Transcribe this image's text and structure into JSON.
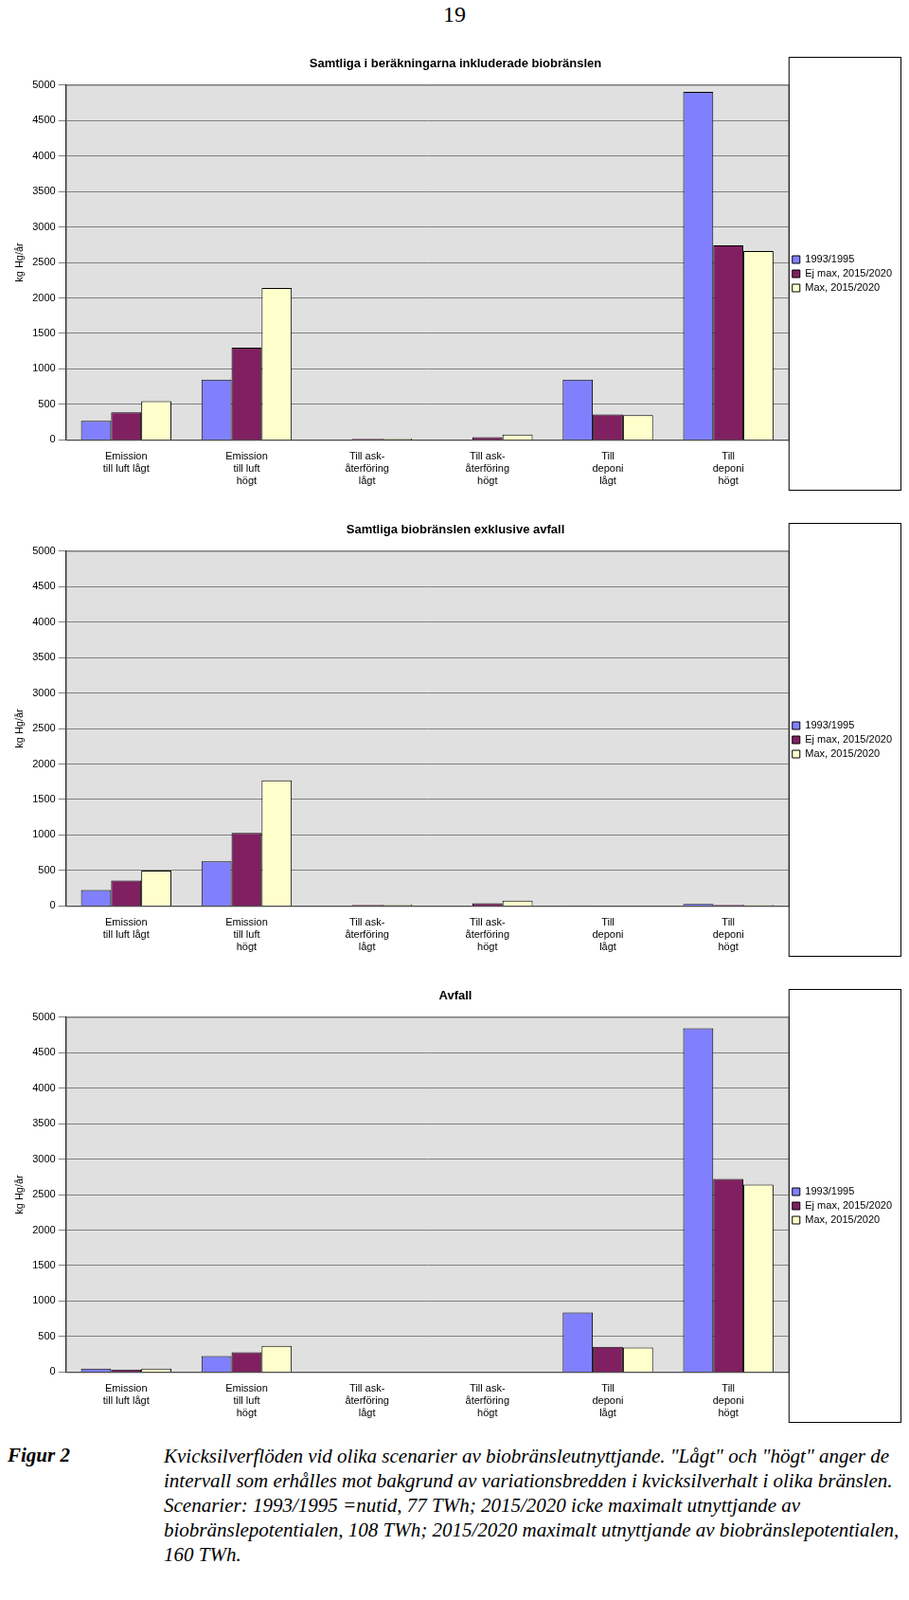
{
  "page_number": "19",
  "caption": {
    "label": "Figur 2",
    "text": "Kvicksilverflöden vid olika scenarier av biobränsleutnyttjande. \"Lågt\" och \"högt\" anger de intervall som erhålles mot bakgrund av variationsbredden i kvicksilverhalt i olika bränslen. Scenarier: 1993/1995 =nutid, 77 TWh; 2015/2020 icke maximalt utnyttjande av biobränslepotentialen, 108 TWh; 2015/2020 maximalt utnyttjande av biobränslepotentialen, 160 TWh."
  },
  "chart_data": [
    {
      "type": "bar",
      "title": "Samtliga i beräkningarna inkluderade biobränslen",
      "y_label": "kg Hg/år",
      "categories": [
        "Emission\ntill luft lågt",
        "Emission\ntill luft\nhögt",
        "Till ask-\nåterföring\nlågt",
        "Till ask-\nåterföring\nhögt",
        "Till\ndeponi\nlågt",
        "Till\ndeponi\nhögt"
      ],
      "series": [
        {
          "name": "1993/1995",
          "color": "#8080ff",
          "values": [
            270,
            850,
            5,
            5,
            850,
            4900
          ]
        },
        {
          "name": "Ej max, 2015/2020",
          "color": "#802060",
          "values": [
            390,
            1300,
            15,
            40,
            360,
            2740
          ]
        },
        {
          "name": "Max, 2015/2020",
          "color": "#ffffcc",
          "values": [
            545,
            2140,
            20,
            75,
            350,
            2660
          ]
        }
      ],
      "ylim": [
        0,
        5000
      ],
      "yticks": [
        0,
        500,
        1000,
        1500,
        2000,
        2500,
        3000,
        3500,
        4000,
        4500,
        5000
      ],
      "grid": true,
      "legend": "right"
    },
    {
      "type": "bar",
      "title": "Samtliga biobränslen exklusive avfall",
      "y_label": "kg Hg/år",
      "categories": [
        "Emission\ntill luft lågt",
        "Emission\ntill luft\nhögt",
        "Till ask-\nåterföring\nlågt",
        "Till ask-\nåterföring\nhögt",
        "Till\ndeponi\nlågt",
        "Till\ndeponi\nhögt"
      ],
      "series": [
        {
          "name": "1993/1995",
          "color": "#8080ff",
          "values": [
            225,
            630,
            5,
            5,
            10,
            30
          ]
        },
        {
          "name": "Ej max, 2015/2020",
          "color": "#802060",
          "values": [
            360,
            1030,
            15,
            40,
            5,
            15
          ]
        },
        {
          "name": "Max, 2015/2020",
          "color": "#ffffcc",
          "values": [
            500,
            1770,
            20,
            75,
            5,
            15
          ]
        }
      ],
      "ylim": [
        0,
        5000
      ],
      "yticks": [
        0,
        500,
        1000,
        1500,
        2000,
        2500,
        3000,
        3500,
        4000,
        4500,
        5000
      ],
      "grid": true,
      "legend": "right"
    },
    {
      "type": "bar",
      "title": "Avfall",
      "y_label": "kg Hg/år",
      "categories": [
        "Emission\ntill luft lågt",
        "Emission\ntill luft\nhögt",
        "Till ask-\nåterföring\nlågt",
        "Till ask-\nåterföring\nhögt",
        "Till\ndeponi\nlågt",
        "Till\ndeponi\nhögt"
      ],
      "series": [
        {
          "name": "1993/1995",
          "color": "#8080ff",
          "values": [
            50,
            225,
            0,
            0,
            840,
            4840
          ]
        },
        {
          "name": "Ej max, 2015/2020",
          "color": "#802060",
          "values": [
            35,
            280,
            0,
            0,
            355,
            2720
          ]
        },
        {
          "name": "Max, 2015/2020",
          "color": "#ffffcc",
          "values": [
            50,
            370,
            0,
            0,
            345,
            2640
          ]
        }
      ],
      "ylim": [
        0,
        5000
      ],
      "yticks": [
        0,
        500,
        1000,
        1500,
        2000,
        2500,
        3000,
        3500,
        4000,
        4500,
        5000
      ],
      "grid": true,
      "legend": "right"
    }
  ]
}
